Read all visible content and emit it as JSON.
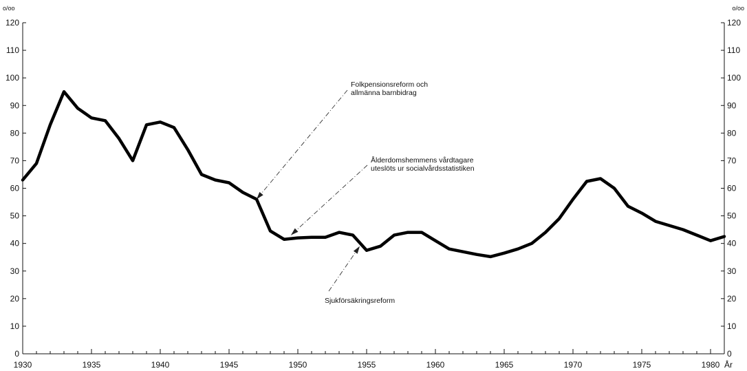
{
  "chart_data": {
    "type": "line",
    "title": "",
    "ylabel_left": "o/oo",
    "ylabel_right": "o/oo",
    "xlabel": "År",
    "xlim": [
      1930,
      1981
    ],
    "ylim": [
      0,
      120
    ],
    "y_ticks": [
      0,
      10,
      20,
      30,
      40,
      50,
      60,
      70,
      80,
      90,
      100,
      110,
      120
    ],
    "x_tick_labels": [
      1930,
      1935,
      1940,
      1945,
      1950,
      1955,
      1960,
      1965,
      1970,
      1975,
      1980
    ],
    "grid": false,
    "series": [
      {
        "x": [
          1930,
          1931,
          1932,
          1933,
          1934,
          1935,
          1936,
          1937,
          1938,
          1939,
          1940,
          1941,
          1942,
          1943,
          1944,
          1945,
          1946,
          1947,
          1948,
          1949,
          1950,
          1951,
          1952,
          1953,
          1954,
          1955,
          1956,
          1957,
          1958,
          1959,
          1960,
          1961,
          1962,
          1963,
          1964,
          1965,
          1966,
          1967,
          1968,
          1969,
          1970,
          1971,
          1972,
          1973,
          1974,
          1975,
          1976,
          1977,
          1978,
          1979,
          1980,
          1981
        ],
        "values": [
          63,
          69,
          83,
          95,
          89,
          85.5,
          84.5,
          78,
          70,
          83,
          84,
          82,
          74,
          65,
          63,
          62,
          58.5,
          56,
          44.5,
          41.5,
          42,
          42.2,
          42.2,
          44,
          43,
          37.5,
          39,
          43,
          44,
          44,
          41,
          38,
          37,
          36,
          35.2,
          36.5,
          38,
          40,
          44,
          49,
          56,
          62.5,
          63.5,
          60,
          53.5,
          51,
          48,
          46.5,
          45,
          43,
          41,
          42.5
        ]
      }
    ],
    "annotations": [
      {
        "lines": [
          "Folkpensionsreform och",
          "allmänna barnbidrag"
        ],
        "target_x": 1947,
        "target_y": 56
      },
      {
        "lines": [
          "Ålderdomshemmens vårdtagare",
          "uteslöts ur socialvårdsstatistiken"
        ],
        "target_x": 1949.5,
        "target_y": 43
      },
      {
        "lines": [
          "Sjukförsäkringsreform"
        ],
        "target_x": 1954.5,
        "target_y": 39
      }
    ]
  }
}
